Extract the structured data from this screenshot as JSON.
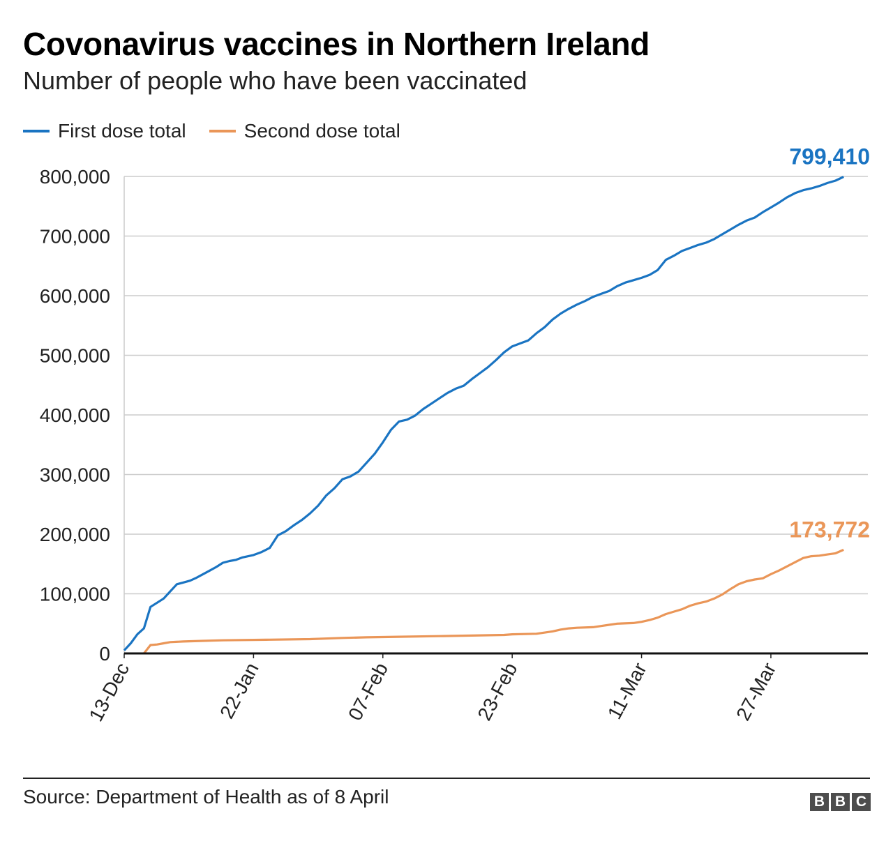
{
  "header": {
    "title": "Covonavirus vaccines in Northern Ireland",
    "subtitle": "Number of people who have been vaccinated"
  },
  "legend": [
    {
      "label": "First dose total",
      "color": "#1a74c2"
    },
    {
      "label": "Second dose total",
      "color": "#ea9658"
    }
  ],
  "footer": {
    "source": "Source: Department of Health as of 8 April",
    "logo_letters": [
      "B",
      "B",
      "C"
    ]
  },
  "chart_data": {
    "type": "line",
    "ylim": [
      0,
      800000
    ],
    "yticks": [
      0,
      100000,
      200000,
      300000,
      400000,
      500000,
      600000,
      700000,
      800000
    ],
    "ytick_labels": [
      "0",
      "100,000",
      "200,000",
      "300,000",
      "400,000",
      "500,000",
      "600,000",
      "700,000",
      "800,000"
    ],
    "xlim": [
      "2020-12-13",
      "2021-04-08"
    ],
    "xticks": [
      "2020-12-13",
      "2021-01-22",
      "2021-02-07",
      "2021-02-23",
      "2021-03-11",
      "2021-03-27"
    ],
    "xtick_labels": [
      "13-Dec",
      "22-Jan",
      "07-Feb",
      "23-Feb",
      "11-Mar",
      "27-Mar"
    ],
    "grid": true,
    "legend_position": "top-left",
    "series": [
      {
        "name": "First dose total",
        "color": "#1a74c2",
        "end_label": "799,410",
        "points": [
          [
            "2020-12-13",
            5000
          ],
          [
            "2020-12-14",
            17000
          ],
          [
            "2020-12-15",
            32000
          ],
          [
            "2020-12-16",
            42000
          ],
          [
            "2020-12-17",
            78000
          ],
          [
            "2020-12-18",
            85000
          ],
          [
            "2020-12-19",
            92000
          ],
          [
            "2020-12-20",
            104000
          ],
          [
            "2020-12-21",
            116000
          ],
          [
            "2020-12-22",
            119000
          ],
          [
            "2020-12-23",
            122000
          ],
          [
            "2020-12-24",
            127000
          ],
          [
            "2020-12-25",
            133000
          ],
          [
            "2020-12-26",
            139000
          ],
          [
            "2020-12-27",
            145000
          ],
          [
            "2020-12-28",
            152000
          ],
          [
            "2020-12-29",
            155000
          ],
          [
            "2020-12-30",
            157000
          ],
          [
            "2020-12-31",
            161000
          ],
          [
            "2021-01-22",
            165000
          ],
          [
            "2021-01-23",
            170000
          ],
          [
            "2021-01-24",
            177000
          ],
          [
            "2021-01-25",
            198000
          ],
          [
            "2021-01-26",
            205000
          ],
          [
            "2021-01-27",
            215000
          ],
          [
            "2021-01-28",
            224000
          ],
          [
            "2021-01-29",
            235000
          ],
          [
            "2021-01-30",
            248000
          ],
          [
            "2021-01-31",
            265000
          ],
          [
            "2021-02-01",
            277000
          ],
          [
            "2021-02-02",
            292000
          ],
          [
            "2021-02-03",
            297000
          ],
          [
            "2021-02-04",
            305000
          ],
          [
            "2021-02-05",
            320000
          ],
          [
            "2021-02-06",
            335000
          ],
          [
            "2021-02-07",
            354000
          ],
          [
            "2021-02-08",
            375000
          ],
          [
            "2021-02-09",
            389000
          ],
          [
            "2021-02-10",
            392000
          ],
          [
            "2021-02-11",
            399000
          ],
          [
            "2021-02-12",
            410000
          ],
          [
            "2021-02-13",
            419000
          ],
          [
            "2021-02-14",
            428000
          ],
          [
            "2021-02-15",
            437000
          ],
          [
            "2021-02-16",
            444000
          ],
          [
            "2021-02-17",
            449000
          ],
          [
            "2021-02-18",
            460000
          ],
          [
            "2021-02-19",
            470000
          ],
          [
            "2021-02-20",
            480000
          ],
          [
            "2021-02-21",
            492000
          ],
          [
            "2021-02-22",
            505000
          ],
          [
            "2021-02-23",
            515000
          ],
          [
            "2021-02-24",
            520000
          ],
          [
            "2021-02-25",
            525000
          ],
          [
            "2021-02-26",
            537000
          ],
          [
            "2021-02-27",
            547000
          ],
          [
            "2021-02-28",
            560000
          ],
          [
            "2021-03-01",
            570000
          ],
          [
            "2021-03-02",
            578000
          ],
          [
            "2021-03-03",
            585000
          ],
          [
            "2021-03-04",
            591000
          ],
          [
            "2021-03-05",
            598000
          ],
          [
            "2021-03-06",
            603000
          ],
          [
            "2021-03-07",
            608000
          ],
          [
            "2021-03-08",
            616000
          ],
          [
            "2021-03-09",
            622000
          ],
          [
            "2021-03-10",
            626000
          ],
          [
            "2021-03-11",
            630000
          ],
          [
            "2021-03-12",
            635000
          ],
          [
            "2021-03-13",
            643000
          ],
          [
            "2021-03-14",
            660000
          ],
          [
            "2021-03-15",
            667000
          ],
          [
            "2021-03-16",
            675000
          ],
          [
            "2021-03-17",
            680000
          ],
          [
            "2021-03-18",
            685000
          ],
          [
            "2021-03-19",
            689000
          ],
          [
            "2021-03-20",
            695000
          ],
          [
            "2021-03-21",
            703000
          ],
          [
            "2021-03-22",
            711000
          ],
          [
            "2021-03-23",
            719000
          ],
          [
            "2021-03-24",
            726000
          ],
          [
            "2021-03-25",
            731000
          ],
          [
            "2021-03-26",
            740000
          ],
          [
            "2021-03-27",
            748000
          ],
          [
            "2021-03-28",
            756000
          ],
          [
            "2021-03-29",
            765000
          ],
          [
            "2021-03-30",
            772000
          ],
          [
            "2021-03-31",
            777000
          ],
          [
            "2021-04-01",
            780000
          ],
          [
            "2021-04-02",
            784000
          ],
          [
            "2021-04-03",
            789000
          ],
          [
            "2021-04-04",
            793000
          ],
          [
            "2021-04-05",
            799410
          ]
        ]
      },
      {
        "name": "Second dose total",
        "color": "#ea9658",
        "end_label": "173,772",
        "points": [
          [
            "2020-12-16",
            0
          ],
          [
            "2020-12-17",
            14000
          ],
          [
            "2020-12-18",
            15000
          ],
          [
            "2020-12-19",
            17000
          ],
          [
            "2020-12-20",
            19000
          ],
          [
            "2020-12-22",
            20000
          ],
          [
            "2020-12-25",
            21000
          ],
          [
            "2020-12-28",
            22000
          ],
          [
            "2021-01-24",
            23000
          ],
          [
            "2021-01-29",
            24000
          ],
          [
            "2021-02-02",
            26000
          ],
          [
            "2021-02-05",
            27000
          ],
          [
            "2021-02-09",
            28000
          ],
          [
            "2021-02-14",
            29000
          ],
          [
            "2021-02-18",
            30000
          ],
          [
            "2021-02-22",
            31000
          ],
          [
            "2021-02-23",
            32000
          ],
          [
            "2021-02-26",
            33000
          ],
          [
            "2021-02-28",
            37000
          ],
          [
            "2021-03-01",
            40000
          ],
          [
            "2021-03-02",
            42000
          ],
          [
            "2021-03-03",
            43000
          ],
          [
            "2021-03-05",
            44000
          ],
          [
            "2021-03-06",
            46000
          ],
          [
            "2021-03-07",
            48000
          ],
          [
            "2021-03-08",
            50000
          ],
          [
            "2021-03-10",
            51000
          ],
          [
            "2021-03-11",
            53000
          ],
          [
            "2021-03-12",
            56000
          ],
          [
            "2021-03-13",
            60000
          ],
          [
            "2021-03-14",
            66000
          ],
          [
            "2021-03-15",
            70000
          ],
          [
            "2021-03-16",
            74000
          ],
          [
            "2021-03-17",
            80000
          ],
          [
            "2021-03-18",
            84000
          ],
          [
            "2021-03-19",
            87000
          ],
          [
            "2021-03-20",
            92000
          ],
          [
            "2021-03-21",
            99000
          ],
          [
            "2021-03-22",
            108000
          ],
          [
            "2021-03-23",
            116000
          ],
          [
            "2021-03-24",
            121000
          ],
          [
            "2021-03-25",
            124000
          ],
          [
            "2021-03-26",
            126000
          ],
          [
            "2021-03-27",
            133000
          ],
          [
            "2021-03-28",
            139000
          ],
          [
            "2021-03-29",
            146000
          ],
          [
            "2021-03-30",
            153000
          ],
          [
            "2021-03-31",
            160000
          ],
          [
            "2021-04-01",
            163000
          ],
          [
            "2021-04-02",
            164000
          ],
          [
            "2021-04-03",
            166000
          ],
          [
            "2021-04-04",
            168000
          ],
          [
            "2021-04-05",
            173772
          ]
        ]
      }
    ]
  }
}
